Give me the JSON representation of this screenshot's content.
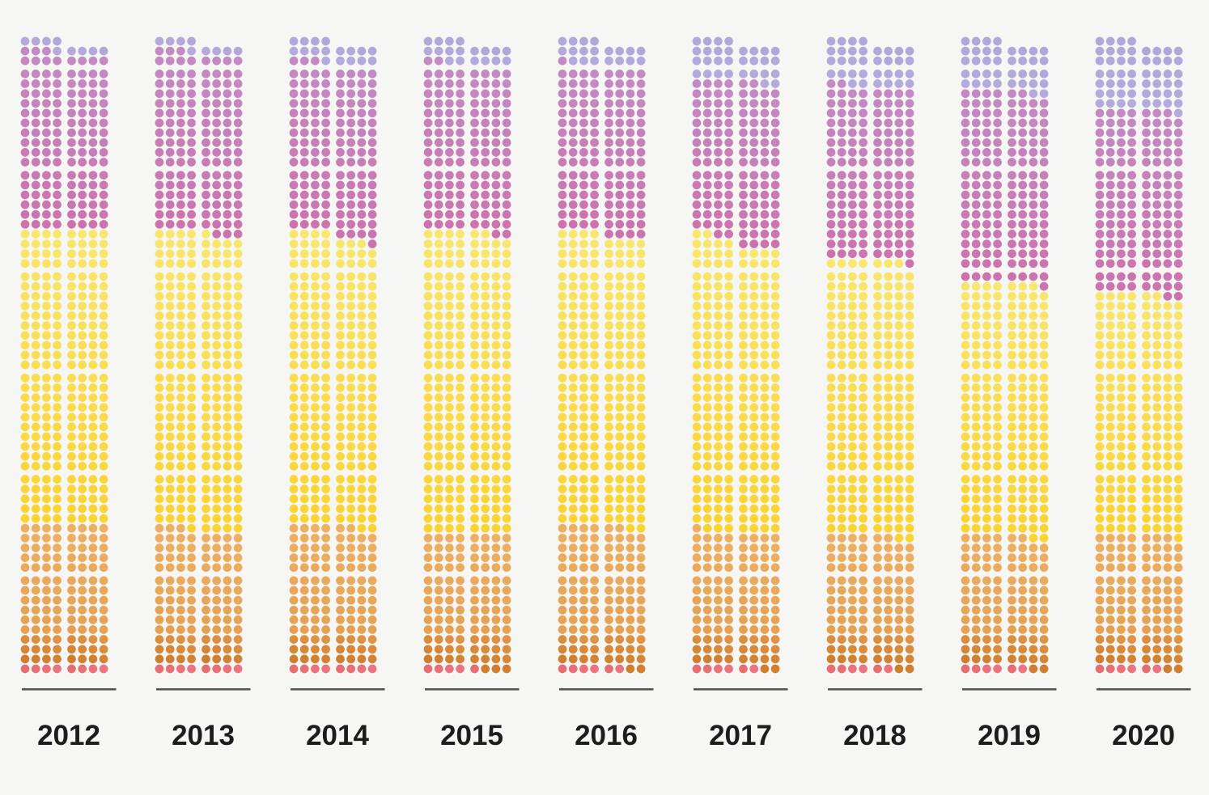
{
  "chart_data": {
    "type": "dot-matrix",
    "x_axis_labels": [
      "2012",
      "2013",
      "2014",
      "2015",
      "2016",
      "2017",
      "2018",
      "2019",
      "2020"
    ],
    "columns_per_year": 2,
    "dots_per_row_per_column": 4,
    "rows_left_column": 63,
    "rows_right_column": 62,
    "dots_left_column": 252,
    "dots_right_column": 248,
    "dots_per_year_total": 500,
    "row_block_size": 10,
    "fill_order": "bottom-to-top, left-to-right within each 4-dot row",
    "segment_order_bottom_to_top": [
      "red",
      "dark_orange",
      "orange",
      "yellow",
      "pink",
      "lavender"
    ],
    "palette": {
      "red": {
        "from": "#e66d72",
        "to": "#ea7581"
      },
      "dark_orange": {
        "from": "#cf7d2e",
        "to": "#e09344"
      },
      "orange": {
        "from": "#e6a052",
        "to": "#edb164"
      },
      "yellow": {
        "from": "#fbd331",
        "to": "#f8e76e"
      },
      "pink": {
        "from": "#cd72ac",
        "to": "#c28bc2"
      },
      "lavender": {
        "from": "#b2abdb",
        "to": "#afa8d9"
      }
    },
    "axis_line_color": "#565656",
    "label_color": "#1d1d1d",
    "background_color": "#f6f6f5",
    "years": [
      {
        "label": "2012",
        "left": {
          "total": 252,
          "boundaries": [
            4,
            16,
            60,
            176,
            247
          ]
        },
        "right": {
          "total": 248,
          "boundaries": [
            4,
            16,
            60,
            176,
            244
          ]
        }
      },
      {
        "label": "2013",
        "left": {
          "total": 252,
          "boundaries": [
            4,
            16,
            59,
            176,
            247
          ]
        },
        "right": {
          "total": 248,
          "boundaries": [
            4,
            16,
            56,
            173,
            244
          ]
        }
      },
      {
        "label": "2014",
        "left": {
          "total": 252,
          "boundaries": [
            4,
            16,
            60,
            176,
            243
          ]
        },
        "right": {
          "total": 248,
          "boundaries": [
            4,
            16,
            58,
            171,
            240
          ]
        }
      },
      {
        "label": "2015",
        "left": {
          "total": 252,
          "boundaries": [
            4,
            16,
            56,
            176,
            242
          ]
        },
        "right": {
          "total": 248,
          "boundaries": [
            1,
            16,
            56,
            174,
            240
          ]
        }
      },
      {
        "label": "2016",
        "left": {
          "total": 252,
          "boundaries": [
            4,
            16,
            60,
            176,
            241
          ]
        },
        "right": {
          "total": 248,
          "boundaries": [
            2,
            16,
            58,
            172,
            240
          ]
        }
      },
      {
        "label": "2017",
        "left": {
          "total": 252,
          "boundaries": [
            4,
            16,
            57,
            174,
            236
          ]
        },
        "right": {
          "total": 248,
          "boundaries": [
            2,
            16,
            56,
            168,
            234
          ]
        }
      },
      {
        "label": "2018",
        "left": {
          "total": 252,
          "boundaries": [
            4,
            16,
            56,
            164,
            234
          ]
        },
        "right": {
          "total": 248,
          "boundaries": [
            2,
            16,
            54,
            163,
            232
          ]
        }
      },
      {
        "label": "2019",
        "left": {
          "total": 252,
          "boundaries": [
            4,
            16,
            56,
            156,
            232
          ]
        },
        "right": {
          "total": 248,
          "boundaries": [
            2,
            16,
            54,
            155,
            230
          ]
        }
      },
      {
        "label": "2020",
        "left": {
          "total": 252,
          "boundaries": [
            4,
            16,
            56,
            152,
            224
          ]
        },
        "right": {
          "total": 248,
          "boundaries": [
            2,
            16,
            55,
            150,
            223
          ]
        }
      }
    ]
  }
}
